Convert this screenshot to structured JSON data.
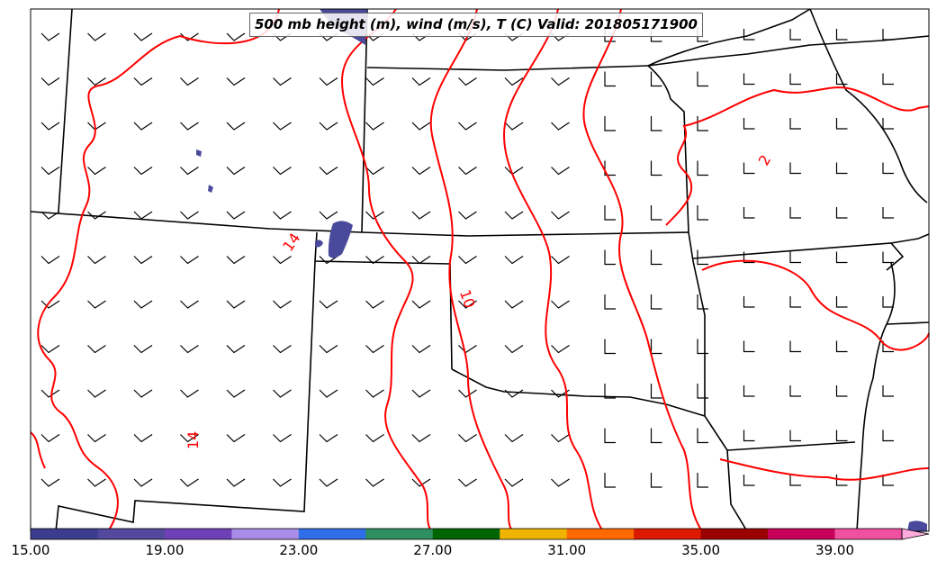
{
  "title": "500 mb height (m), wind (m/s), T (C) Valid: 201805171900",
  "contour_labels": [
    "14",
    "14",
    "10",
    "2"
  ],
  "colorbar": {
    "colors": [
      "#3d3d8f",
      "#52489c",
      "#7040b8",
      "#a78ce8",
      "#2f6ee8",
      "#2e9060",
      "#006400",
      "#f0b400",
      "#ff6a00",
      "#dd1a00",
      "#9b0000",
      "#c8005a",
      "#f050a0",
      "#ffaadd"
    ],
    "ticks": [
      "15.00",
      "19.00",
      "23.00",
      "27.00",
      "31.00",
      "35.00",
      "39.00"
    ]
  },
  "temperature_contour_color": "#ff0000",
  "jet_fill_color": "#4a4a9c"
}
